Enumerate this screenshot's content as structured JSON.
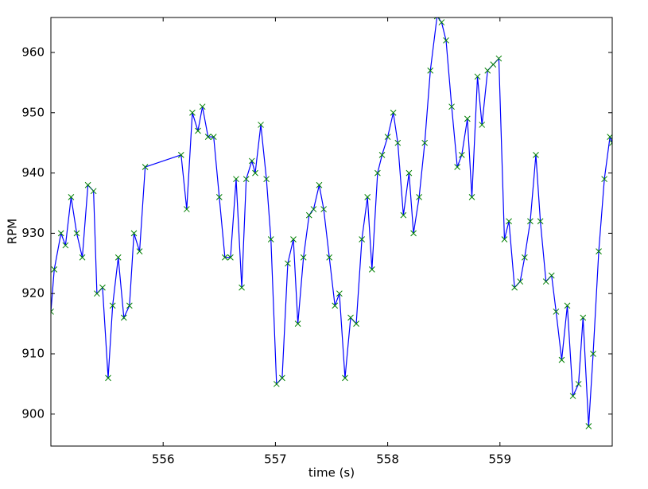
{
  "chart_data": {
    "type": "line",
    "x_label": "time (s)",
    "y_label": "RPM",
    "color": "#0000ff",
    "marker_color": "#008000",
    "marker": "x",
    "xlim": [
      555,
      560
    ],
    "ylim": [
      894.7,
      965.8
    ],
    "xticks": [
      556,
      557,
      558,
      559
    ],
    "yticks": [
      900,
      910,
      920,
      930,
      940,
      950,
      960
    ],
    "grid": false,
    "x": [
      555.0,
      555.03,
      555.09,
      555.13,
      555.18,
      555.23,
      555.28,
      555.33,
      555.38,
      555.41,
      555.46,
      555.51,
      555.55,
      555.6,
      555.65,
      555.7,
      555.74,
      555.79,
      555.84,
      556.16,
      556.21,
      556.26,
      556.31,
      556.35,
      556.4,
      556.45,
      556.5,
      556.55,
      556.6,
      556.65,
      556.7,
      556.74,
      556.79,
      556.82,
      556.87,
      556.92,
      556.96,
      557.01,
      557.06,
      557.11,
      557.16,
      557.2,
      557.25,
      557.3,
      557.34,
      557.39,
      557.43,
      557.48,
      557.53,
      557.57,
      557.62,
      557.67,
      557.72,
      557.77,
      557.82,
      557.86,
      557.91,
      557.95,
      558.0,
      558.05,
      558.09,
      558.14,
      558.19,
      558.23,
      558.28,
      558.33,
      558.38,
      558.44,
      558.48,
      558.52,
      558.57,
      558.62,
      558.66,
      558.71,
      558.75,
      558.8,
      558.84,
      558.89,
      558.94,
      558.99,
      559.04,
      559.08,
      559.13,
      559.18,
      559.22,
      559.27,
      559.32,
      559.36,
      559.41,
      559.46,
      559.5,
      559.55,
      559.6,
      559.65,
      559.7,
      559.74,
      559.79,
      559.83,
      559.88,
      559.93,
      559.98,
      560.0
    ],
    "values": [
      917,
      924,
      930,
      928,
      936,
      930,
      926,
      938,
      937,
      920,
      921,
      906,
      918,
      926,
      916,
      918,
      930,
      927,
      941,
      943,
      934,
      950,
      947,
      951,
      946,
      946,
      936,
      926,
      926,
      939,
      921,
      939,
      942,
      940,
      948,
      939,
      929,
      905,
      906,
      925,
      929,
      915,
      926,
      933,
      934,
      938,
      934,
      926,
      918,
      920,
      906,
      916,
      915,
      929,
      936,
      924,
      940,
      943,
      946,
      950,
      945,
      933,
      940,
      930,
      936,
      945,
      957,
      966,
      965,
      962,
      951,
      941,
      943,
      949,
      936,
      956,
      948,
      957,
      958,
      959,
      929,
      932,
      921,
      922,
      926,
      932,
      943,
      932,
      922,
      923,
      917,
      909,
      918,
      903,
      905,
      916,
      898,
      910,
      927,
      939,
      946,
      945
    ]
  }
}
